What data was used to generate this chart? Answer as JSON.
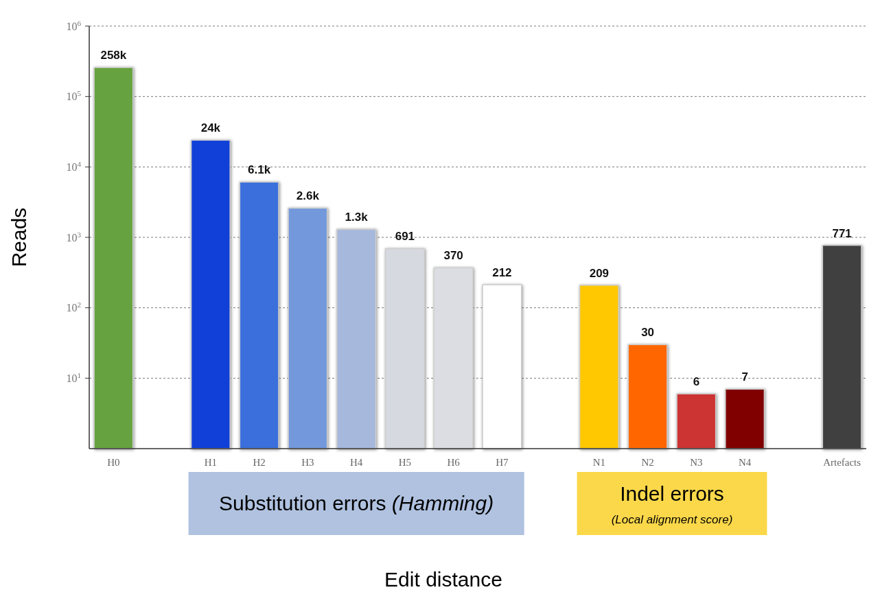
{
  "chart_data": {
    "type": "bar",
    "xlabel": "Edit distance",
    "ylabel": "Reads",
    "categories": [
      "H0",
      null,
      "H1",
      "H2",
      "H3",
      "H4",
      "H5",
      "H6",
      "H7",
      null,
      "N1",
      "N2",
      "N3",
      "N4",
      null,
      "Artefacts"
    ],
    "values": [
      258000,
      null,
      24000,
      6100,
      2600,
      1300,
      691,
      370,
      212,
      null,
      209,
      30,
      6,
      7,
      null,
      771
    ],
    "colors": [
      "#66a23f",
      null,
      "#1040d8",
      "#3a6fdc",
      "#7399dc",
      "#a6b8dc",
      "#d6d9e0",
      "#dcdde2",
      "#ffffff",
      null,
      "#ffc800",
      "#ff6600",
      "#cc3333",
      "#800000",
      null,
      "#404040"
    ],
    "value_labels": [
      "258k",
      null,
      "24k",
      "6.1k",
      "2.6k",
      "1.3k",
      "691",
      "370",
      "212",
      null,
      "209",
      "30",
      "6",
      "7",
      null,
      "771"
    ],
    "log": true,
    "ylim": [
      1,
      1000000
    ],
    "yticks": [
      {
        "value": 10,
        "label": "10$^{1}$"
      },
      {
        "value": 100,
        "label": "10$^{2}$"
      },
      {
        "value": 1000,
        "label": "10$^{3}$"
      },
      {
        "value": 10000,
        "label": "10$^{4}$"
      },
      {
        "value": 100000,
        "label": "10$^{5}$"
      },
      {
        "value": 1000000,
        "label": "10$^{6}$"
      }
    ],
    "grid": "y",
    "annotations": [
      "Substitution errors (Hamming)",
      "Indel errors",
      "(Local alignment score)"
    ]
  }
}
